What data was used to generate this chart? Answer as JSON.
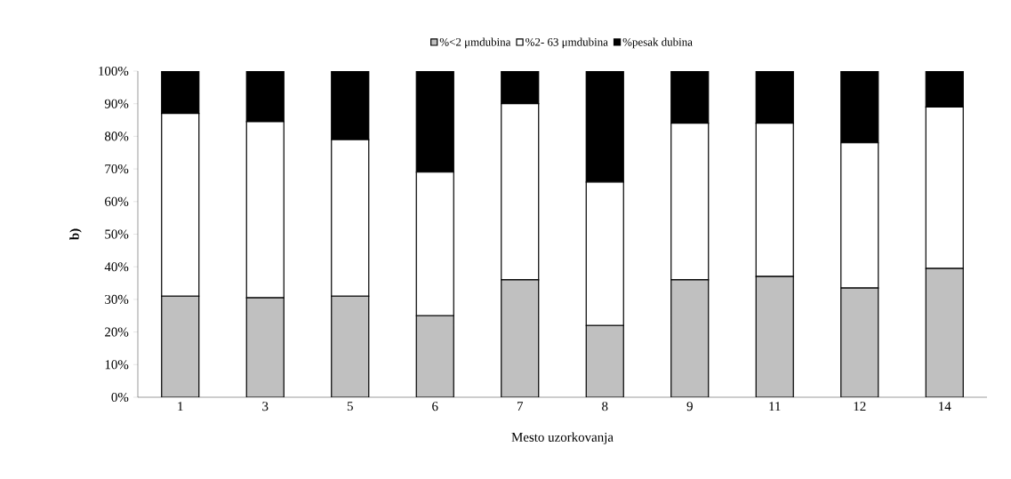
{
  "chart_data": {
    "type": "bar",
    "stacked": true,
    "xlabel": "Mesto uzorkovanja",
    "ylabel": "b)",
    "categories": [
      "1",
      "3",
      "5",
      "6",
      "7",
      "8",
      "9",
      "11",
      "12",
      "14"
    ],
    "series": [
      {
        "name": "%<2 μmdubina",
        "color": "#c0c0c0",
        "values": [
          31,
          30.5,
          31,
          25,
          36,
          22,
          36,
          37,
          33.5,
          39.5
        ]
      },
      {
        "name": "%2- 63 μmdubina",
        "color": "#ffffff",
        "values": [
          56,
          54,
          48,
          44,
          54,
          44,
          48,
          47,
          44.5,
          49.5
        ]
      },
      {
        "name": "%pesak dubina",
        "color": "#000000",
        "values": [
          13,
          15.5,
          21,
          31,
          10,
          34,
          16,
          16,
          22,
          11
        ]
      }
    ],
    "ylim": [
      0,
      100
    ],
    "yticks": [
      {
        "value": 0,
        "label": "0%"
      },
      {
        "value": 10,
        "label": "10%"
      },
      {
        "value": 20,
        "label": "20%"
      },
      {
        "value": 30,
        "label": "30%"
      },
      {
        "value": 40,
        "label": "40%"
      },
      {
        "value": 50,
        "label": "50%"
      },
      {
        "value": 60,
        "label": "60%"
      },
      {
        "value": 70,
        "label": "70%"
      },
      {
        "value": 80,
        "label": "80%"
      },
      {
        "value": 90,
        "label": "90%"
      },
      {
        "value": 100,
        "label": "100%"
      }
    ],
    "grid": false,
    "legend": "top"
  }
}
